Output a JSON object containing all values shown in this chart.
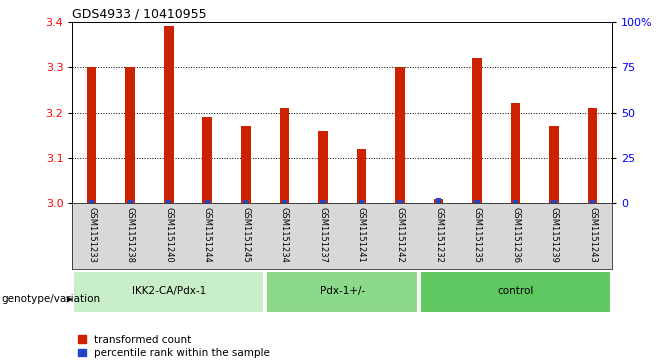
{
  "title": "GDS4933 / 10410955",
  "samples": [
    "GSM1151233",
    "GSM1151238",
    "GSM1151240",
    "GSM1151244",
    "GSM1151245",
    "GSM1151234",
    "GSM1151237",
    "GSM1151241",
    "GSM1151242",
    "GSM1151232",
    "GSM1151235",
    "GSM1151236",
    "GSM1151239",
    "GSM1151243"
  ],
  "red_values": [
    3.3,
    3.3,
    3.39,
    3.19,
    3.17,
    3.21,
    3.16,
    3.12,
    3.3,
    3.01,
    3.32,
    3.22,
    3.17,
    3.21
  ],
  "blue_heights": [
    0.008,
    0.008,
    0.008,
    0.008,
    0.008,
    0.008,
    0.008,
    0.008,
    0.008,
    0.012,
    0.008,
    0.008,
    0.008,
    0.008
  ],
  "groups": [
    {
      "label": "IKK2-CA/Pdx-1",
      "start": 0,
      "end": 5,
      "color": "#c8eec8"
    },
    {
      "label": "Pdx-1+/-",
      "start": 5,
      "end": 9,
      "color": "#8cd98c"
    },
    {
      "label": "control",
      "start": 9,
      "end": 14,
      "color": "#60c860"
    }
  ],
  "ymin": 3.0,
  "ymax": 3.4,
  "yticks": [
    3.0,
    3.1,
    3.2,
    3.3,
    3.4
  ],
  "right_yticks": [
    0,
    25,
    50,
    75,
    100
  ],
  "right_yticklabels": [
    "0",
    "25",
    "50",
    "75",
    "100%"
  ],
  "bar_width": 0.25,
  "red_color": "#cc2200",
  "blue_color": "#2244cc",
  "sample_bg_color": "#d8d8d8",
  "plot_bg": "#ffffff",
  "xlabel_genotype": "genotype/variation",
  "legend_red": "transformed count",
  "legend_blue": "percentile rank within the sample"
}
